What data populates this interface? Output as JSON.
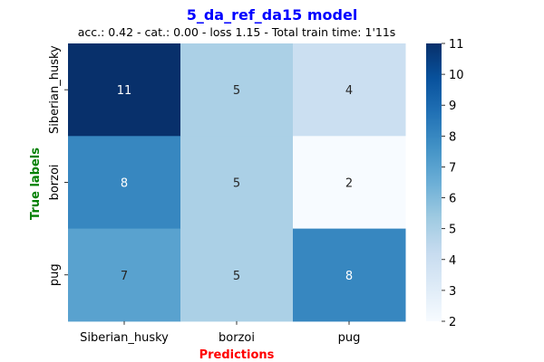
{
  "chart_data": {
    "type": "heatmap",
    "title": "5_da_ref_da15 model",
    "subtitle": "acc.: 0.42 - cat.: 0.00 - loss 1.15 - Total train time: 1'11s",
    "xlabel": "Predictions",
    "ylabel": "True labels",
    "x_categories": [
      "Siberian_husky",
      "borzoi",
      "pug"
    ],
    "y_categories": [
      "Siberian_husky",
      "borzoi",
      "pug"
    ],
    "values": [
      [
        11,
        5,
        4
      ],
      [
        8,
        5,
        2
      ],
      [
        7,
        5,
        8
      ]
    ],
    "colorbar": {
      "min": 2,
      "max": 11,
      "ticks": [
        2,
        3,
        4,
        5,
        6,
        7,
        8,
        9,
        10,
        11
      ]
    },
    "colormap": "Blues"
  },
  "colors": {
    "title": "#0000ff",
    "xlabel": "#ff0000",
    "ylabel": "#008000"
  }
}
